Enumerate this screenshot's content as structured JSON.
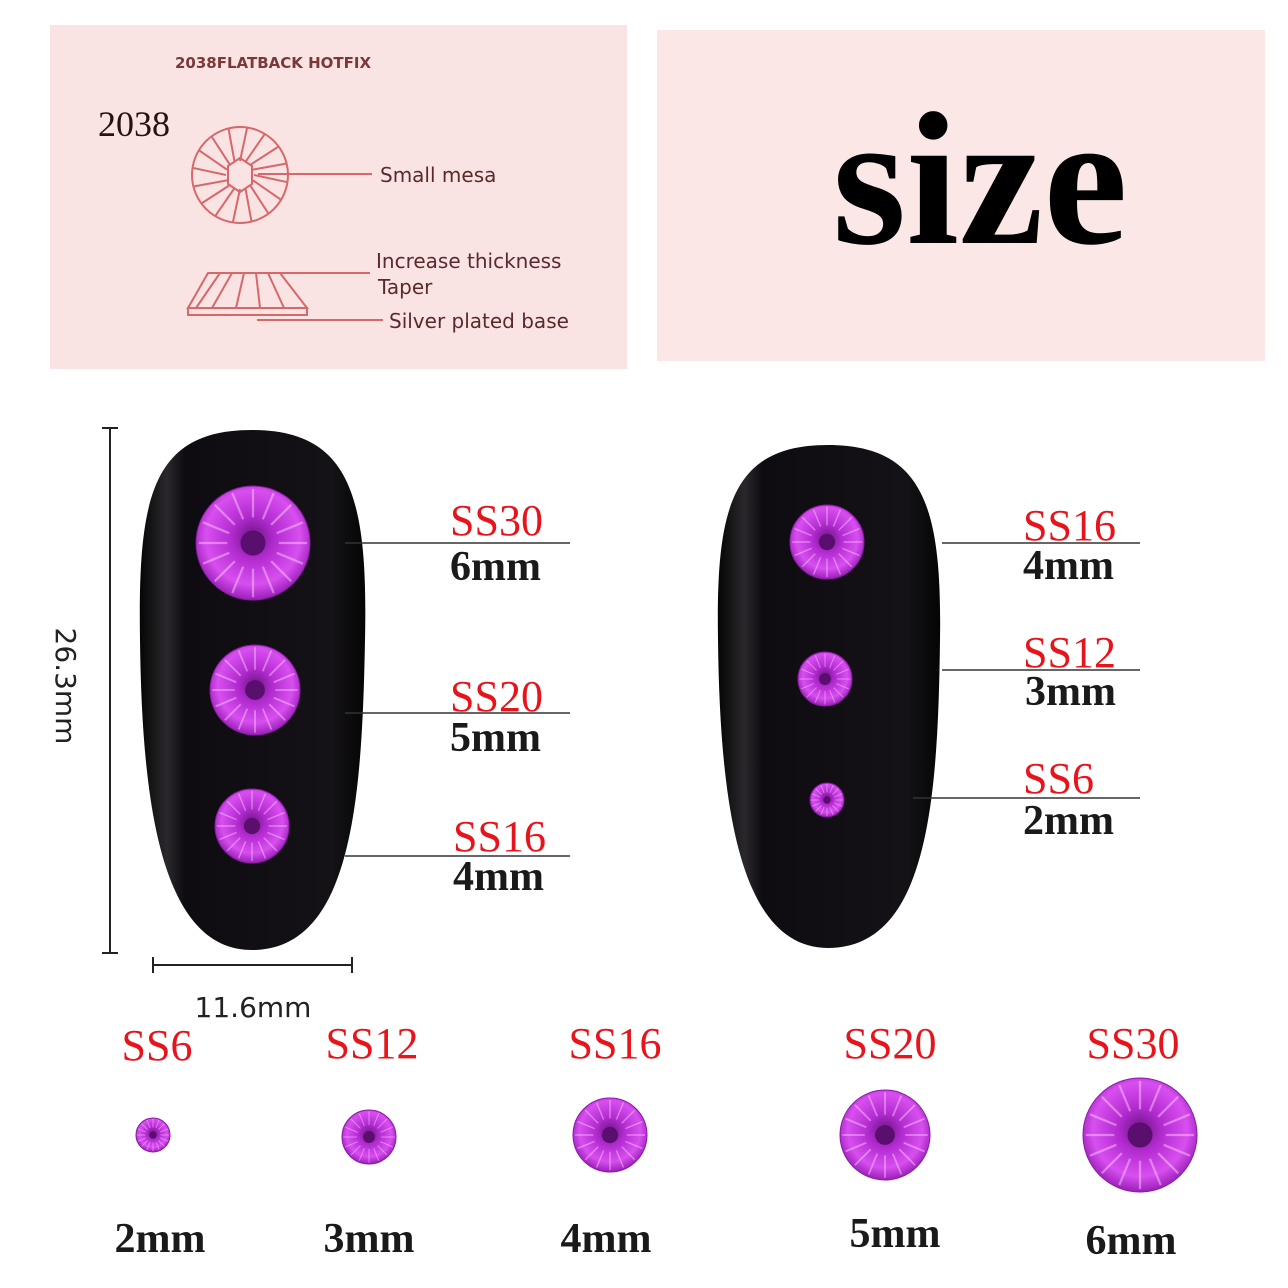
{
  "diagram_panel": {
    "header": "2038FLATBACK HOTFIX",
    "model": "2038",
    "labels": [
      "Small mesa",
      "Increase thickness",
      "Taper",
      "Silver plated base"
    ],
    "background_color": "#f9e4e3",
    "line_color": "#d8676a"
  },
  "title_panel": {
    "title": "size",
    "background_color": "#fbe7e6"
  },
  "dimensions": {
    "height": "26.3mm",
    "width": "11.6mm"
  },
  "nail_left": [
    {
      "code": "SS30",
      "size": "6mm"
    },
    {
      "code": "SS20",
      "size": "5mm"
    },
    {
      "code": "SS16",
      "size": "4mm"
    }
  ],
  "nail_right": [
    {
      "code": "SS16",
      "size": "4mm"
    },
    {
      "code": "SS12",
      "size": "3mm"
    },
    {
      "code": "SS6",
      "size": "2mm"
    }
  ],
  "size_row": [
    {
      "code": "SS6",
      "size": "2mm"
    },
    {
      "code": "SS12",
      "size": "3mm"
    },
    {
      "code": "SS16",
      "size": "4mm"
    },
    {
      "code": "SS20",
      "size": "5mm"
    },
    {
      "code": "SS30",
      "size": "6mm"
    }
  ],
  "colors": {
    "code_red": "#e8141b",
    "gem_purple": "#c33be0",
    "nail_black": "#121014"
  }
}
